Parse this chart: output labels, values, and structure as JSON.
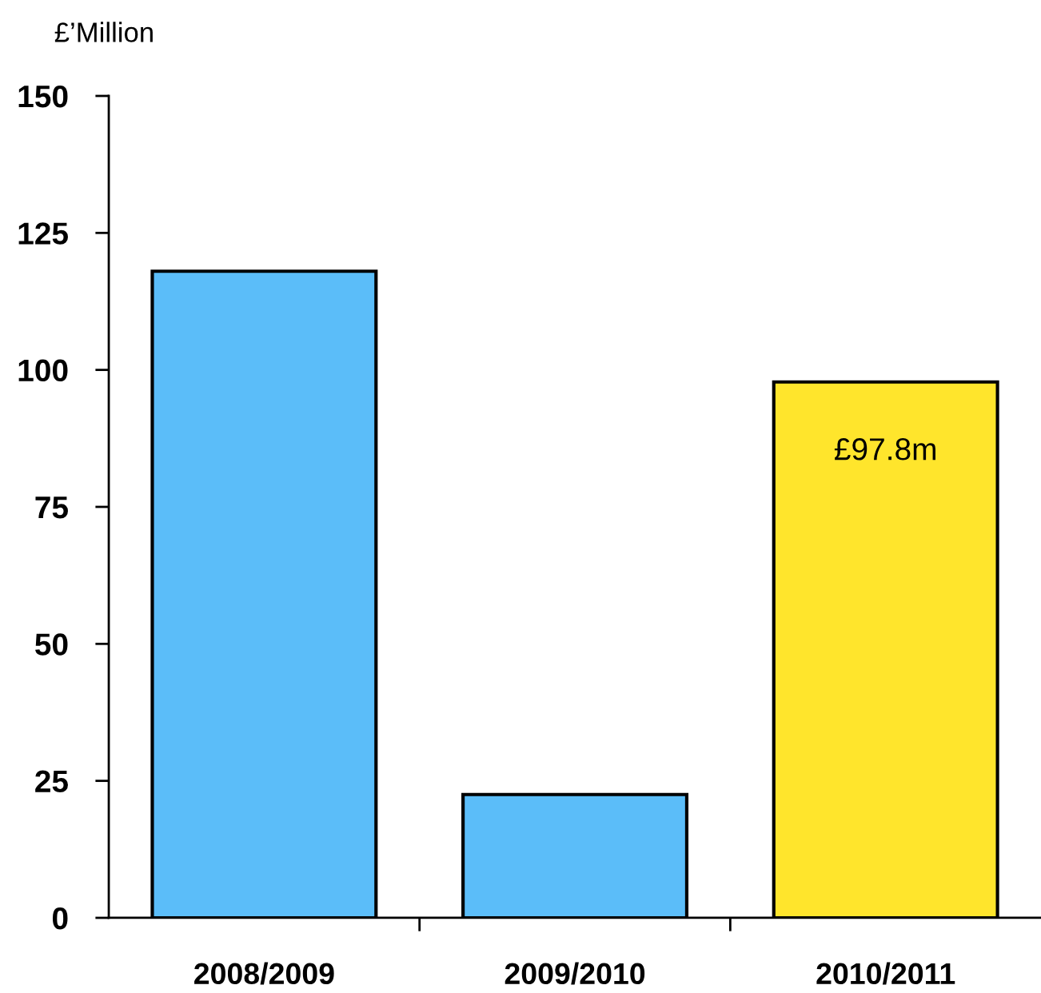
{
  "chart_data": {
    "type": "bar",
    "ylabel": "£’Million",
    "categories": [
      "2008/2009",
      "2009/2010",
      "2010/2011"
    ],
    "values": [
      118,
      22.5,
      97.8
    ],
    "colors": [
      "#5bbdf9",
      "#5bbdf9",
      "#ffe52c"
    ],
    "value_labels": [
      null,
      null,
      "£97.8m"
    ],
    "ylim": [
      0,
      150
    ],
    "yticks": [
      0,
      25,
      50,
      75,
      100,
      125,
      150
    ],
    "grid": false,
    "legend": false
  }
}
